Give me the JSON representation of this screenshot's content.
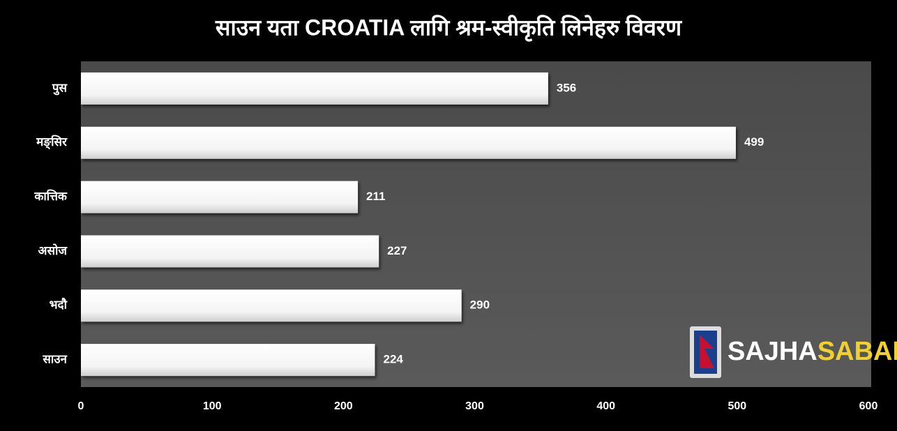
{
  "chart_data": {
    "type": "hbar",
    "title": "साउन यता CROATIA लागि श्रम-स्वीकृति लिनेहरु विवरण",
    "categories": [
      "पुस",
      "मङ्सिर",
      "कात्तिक",
      "असोज",
      "भदौ",
      "साउन"
    ],
    "values": [
      356,
      499,
      211,
      227,
      290,
      224
    ],
    "color": "#ffffff",
    "xlim": [
      0,
      600
    ],
    "xticks": [
      0,
      100,
      200,
      300,
      400,
      500,
      600
    ],
    "grid": false,
    "watermark": [
      "SAJHA",
      "SABAL"
    ]
  }
}
